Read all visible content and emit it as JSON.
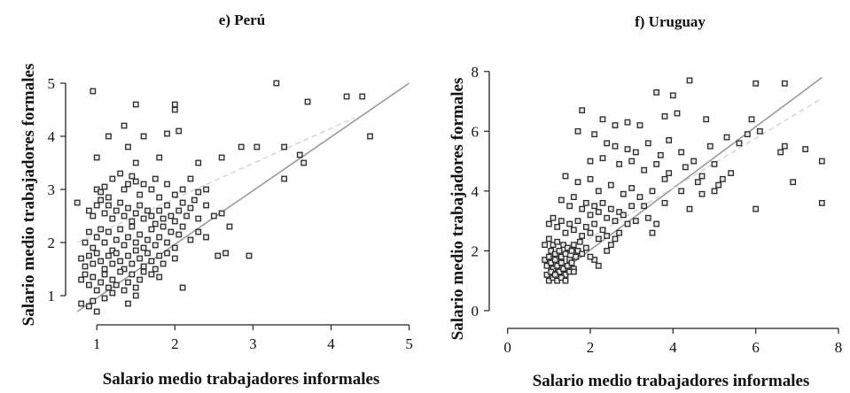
{
  "chart_data": [
    {
      "type": "scatter",
      "title": "e) Perú",
      "xlabel": "Salario medio trabajadores informales",
      "ylabel": "Salario medio trabajadores formales",
      "xlim": [
        0.6,
        5.05
      ],
      "ylim": [
        0.6,
        5.3
      ],
      "xticks": [
        1,
        2,
        3,
        4,
        5
      ],
      "yticks": [
        1,
        2,
        3,
        4,
        5
      ],
      "lines": [
        {
          "style": "solid",
          "color": "#9a9a9a",
          "x": [
            0.75,
            5.0
          ],
          "y": [
            0.7,
            5.0
          ]
        },
        {
          "style": "dashed",
          "color": "#d2d2d2",
          "x": [
            0.75,
            4.3
          ],
          "y": [
            2.0,
            4.35
          ]
        }
      ],
      "points": [
        [
          0.95,
          4.85
        ],
        [
          1.5,
          4.6
        ],
        [
          2.0,
          4.6
        ],
        [
          2.0,
          4.5
        ],
        [
          3.3,
          5.0
        ],
        [
          4.2,
          4.75
        ],
        [
          4.4,
          4.75
        ],
        [
          3.7,
          4.65
        ],
        [
          4.5,
          4.0
        ],
        [
          1.15,
          4.0
        ],
        [
          1.35,
          4.2
        ],
        [
          1.6,
          4.0
        ],
        [
          1.9,
          4.05
        ],
        [
          2.05,
          4.1
        ],
        [
          2.85,
          3.8
        ],
        [
          3.05,
          3.8
        ],
        [
          3.4,
          3.8
        ],
        [
          3.6,
          3.65
        ],
        [
          3.65,
          3.5
        ],
        [
          3.4,
          3.2
        ],
        [
          1.0,
          3.6
        ],
        [
          1.4,
          3.8
        ],
        [
          1.5,
          3.5
        ],
        [
          1.8,
          3.6
        ],
        [
          2.3,
          3.5
        ],
        [
          2.6,
          3.6
        ],
        [
          1.0,
          3.0
        ],
        [
          1.05,
          2.95
        ],
        [
          1.1,
          3.05
        ],
        [
          1.15,
          2.85
        ],
        [
          1.2,
          3.2
        ],
        [
          1.3,
          3.3
        ],
        [
          1.35,
          3.0
        ],
        [
          1.4,
          3.1
        ],
        [
          1.45,
          3.25
        ],
        [
          1.5,
          3.15
        ],
        [
          1.55,
          2.9
        ],
        [
          1.6,
          3.1
        ],
        [
          1.7,
          3.0
        ],
        [
          1.75,
          3.2
        ],
        [
          1.8,
          2.85
        ],
        [
          1.9,
          3.1
        ],
        [
          2.0,
          2.9
        ],
        [
          2.1,
          3.0
        ],
        [
          2.2,
          3.2
        ],
        [
          2.3,
          2.95
        ],
        [
          2.4,
          3.0
        ],
        [
          0.75,
          2.75
        ],
        [
          0.9,
          2.6
        ],
        [
          0.95,
          2.5
        ],
        [
          1.0,
          2.7
        ],
        [
          1.05,
          2.8
        ],
        [
          1.1,
          2.55
        ],
        [
          1.15,
          2.7
        ],
        [
          1.2,
          2.45
        ],
        [
          1.25,
          2.6
        ],
        [
          1.3,
          2.75
        ],
        [
          1.35,
          2.5
        ],
        [
          1.4,
          2.65
        ],
        [
          1.45,
          2.4
        ],
        [
          1.5,
          2.55
        ],
        [
          1.55,
          2.7
        ],
        [
          1.6,
          2.45
        ],
        [
          1.65,
          2.6
        ],
        [
          1.7,
          2.5
        ],
        [
          1.75,
          2.35
        ],
        [
          1.8,
          2.6
        ],
        [
          1.85,
          2.45
        ],
        [
          1.9,
          2.7
        ],
        [
          1.95,
          2.5
        ],
        [
          2.0,
          2.4
        ],
        [
          2.05,
          2.6
        ],
        [
          2.1,
          2.75
        ],
        [
          2.15,
          2.5
        ],
        [
          2.2,
          2.65
        ],
        [
          2.25,
          2.8
        ],
        [
          2.3,
          2.45
        ],
        [
          2.4,
          2.7
        ],
        [
          2.5,
          2.5
        ],
        [
          2.6,
          2.55
        ],
        [
          2.7,
          2.3
        ],
        [
          0.85,
          2.0
        ],
        [
          0.9,
          2.2
        ],
        [
          0.95,
          1.9
        ],
        [
          1.0,
          2.1
        ],
        [
          1.05,
          2.25
        ],
        [
          1.1,
          2.0
        ],
        [
          1.15,
          2.2
        ],
        [
          1.2,
          1.85
        ],
        [
          1.25,
          2.05
        ],
        [
          1.3,
          2.25
        ],
        [
          1.35,
          1.95
        ],
        [
          1.4,
          2.1
        ],
        [
          1.45,
          2.3
        ],
        [
          1.5,
          2.0
        ],
        [
          1.55,
          2.15
        ],
        [
          1.6,
          1.9
        ],
        [
          1.65,
          2.05
        ],
        [
          1.7,
          2.25
        ],
        [
          1.75,
          1.95
        ],
        [
          1.8,
          2.1
        ],
        [
          1.85,
          2.3
        ],
        [
          1.9,
          2.0
        ],
        [
          1.95,
          2.2
        ],
        [
          2.0,
          1.9
        ],
        [
          2.05,
          2.15
        ],
        [
          2.1,
          2.3
        ],
        [
          2.2,
          2.05
        ],
        [
          2.3,
          2.2
        ],
        [
          2.4,
          2.1
        ],
        [
          0.8,
          1.7
        ],
        [
          0.85,
          1.55
        ],
        [
          0.9,
          1.75
        ],
        [
          0.95,
          1.6
        ],
        [
          1.0,
          1.8
        ],
        [
          1.05,
          1.65
        ],
        [
          1.1,
          1.5
        ],
        [
          1.15,
          1.75
        ],
        [
          1.2,
          1.6
        ],
        [
          1.25,
          1.8
        ],
        [
          1.3,
          1.65
        ],
        [
          1.35,
          1.5
        ],
        [
          1.4,
          1.75
        ],
        [
          1.45,
          1.6
        ],
        [
          1.5,
          1.85
        ],
        [
          1.55,
          1.7
        ],
        [
          1.6,
          1.55
        ],
        [
          1.65,
          1.8
        ],
        [
          1.7,
          1.65
        ],
        [
          1.75,
          1.5
        ],
        [
          1.8,
          1.75
        ],
        [
          1.85,
          1.6
        ],
        [
          1.9,
          1.8
        ],
        [
          2.0,
          1.7
        ],
        [
          2.55,
          1.75
        ],
        [
          2.65,
          1.8
        ],
        [
          2.95,
          1.75
        ],
        [
          0.8,
          1.3
        ],
        [
          0.85,
          1.4
        ],
        [
          0.9,
          1.2
        ],
        [
          0.95,
          1.35
        ],
        [
          1.0,
          1.1
        ],
        [
          1.05,
          1.25
        ],
        [
          1.1,
          1.4
        ],
        [
          1.15,
          1.15
        ],
        [
          1.2,
          1.3
        ],
        [
          1.25,
          1.2
        ],
        [
          1.3,
          1.45
        ],
        [
          1.35,
          1.1
        ],
        [
          1.4,
          1.25
        ],
        [
          1.45,
          1.4
        ],
        [
          1.5,
          1.15
        ],
        [
          1.55,
          1.3
        ],
        [
          1.6,
          1.45
        ],
        [
          1.7,
          1.4
        ],
        [
          1.8,
          1.35
        ],
        [
          2.1,
          1.15
        ],
        [
          0.8,
          0.85
        ],
        [
          0.9,
          0.8
        ],
        [
          0.95,
          0.9
        ],
        [
          1.0,
          0.7
        ],
        [
          1.1,
          0.95
        ],
        [
          1.2,
          1.05
        ],
        [
          1.4,
          0.85
        ],
        [
          1.5,
          1.0
        ]
      ]
    },
    {
      "type": "scatter",
      "title": "f) Uruguay",
      "xlabel": "Salario medio trabajadores informales",
      "ylabel": "Salario medio trabajadores formales",
      "xlim": [
        -0.1,
        8.0
      ],
      "ylim": [
        -0.15,
        8.2
      ],
      "xticks": [
        0,
        2,
        4,
        6,
        8
      ],
      "yticks": [
        0,
        2,
        4,
        6,
        8
      ],
      "lines": [
        {
          "style": "solid",
          "color": "#9a9a9a",
          "x": [
            1.0,
            7.6
          ],
          "y": [
            1.0,
            7.8
          ]
        },
        {
          "style": "dashed",
          "color": "#d2d2d2",
          "x": [
            1.0,
            7.6
          ],
          "y": [
            1.6,
            7.1
          ]
        }
      ],
      "points": [
        [
          4.4,
          7.7
        ],
        [
          6.0,
          7.6
        ],
        [
          6.7,
          7.6
        ],
        [
          3.6,
          7.3
        ],
        [
          4.0,
          7.2
        ],
        [
          1.8,
          6.7
        ],
        [
          2.3,
          6.4
        ],
        [
          2.6,
          6.2
        ],
        [
          2.9,
          6.3
        ],
        [
          3.2,
          6.2
        ],
        [
          3.8,
          6.5
        ],
        [
          4.1,
          6.6
        ],
        [
          4.8,
          6.4
        ],
        [
          5.9,
          6.4
        ],
        [
          6.1,
          6.0
        ],
        [
          6.7,
          5.5
        ],
        [
          7.2,
          5.4
        ],
        [
          7.6,
          5.0
        ],
        [
          6.6,
          5.3
        ],
        [
          6.9,
          4.3
        ],
        [
          7.6,
          3.6
        ],
        [
          6.0,
          3.4
        ],
        [
          1.7,
          6.0
        ],
        [
          2.1,
          5.9
        ],
        [
          2.4,
          5.6
        ],
        [
          2.6,
          5.5
        ],
        [
          2.9,
          5.4
        ],
        [
          3.1,
          5.3
        ],
        [
          3.4,
          5.6
        ],
        [
          3.7,
          5.2
        ],
        [
          3.9,
          5.7
        ],
        [
          4.2,
          5.3
        ],
        [
          4.5,
          5.0
        ],
        [
          4.9,
          5.5
        ],
        [
          5.3,
          5.8
        ],
        [
          5.6,
          5.6
        ],
        [
          5.8,
          5.9
        ],
        [
          2.0,
          5.0
        ],
        [
          2.3,
          5.1
        ],
        [
          2.7,
          4.9
        ],
        [
          3.0,
          5.0
        ],
        [
          3.3,
          4.7
        ],
        [
          3.6,
          4.9
        ],
        [
          3.9,
          4.6
        ],
        [
          4.3,
          4.8
        ],
        [
          4.7,
          4.5
        ],
        [
          5.0,
          4.9
        ],
        [
          5.2,
          4.4
        ],
        [
          5.4,
          4.6
        ],
        [
          5.1,
          4.2
        ],
        [
          4.6,
          4.3
        ],
        [
          4.2,
          4.0
        ],
        [
          3.8,
          4.4
        ],
        [
          5.0,
          4.0
        ],
        [
          4.7,
          3.9
        ],
        [
          3.8,
          3.6
        ],
        [
          4.4,
          3.4
        ],
        [
          1.4,
          4.5
        ],
        [
          1.7,
          4.3
        ],
        [
          2.0,
          4.4
        ],
        [
          2.2,
          4.0
        ],
        [
          2.5,
          4.2
        ],
        [
          2.8,
          3.9
        ],
        [
          3.0,
          4.1
        ],
        [
          3.2,
          3.8
        ],
        [
          3.5,
          4.0
        ],
        [
          3.3,
          3.5
        ],
        [
          3.0,
          3.5
        ],
        [
          2.7,
          3.3
        ],
        [
          1.3,
          3.7
        ],
        [
          1.5,
          3.5
        ],
        [
          1.6,
          3.8
        ],
        [
          1.8,
          3.4
        ],
        [
          1.9,
          3.6
        ],
        [
          2.0,
          3.2
        ],
        [
          2.1,
          3.5
        ],
        [
          2.2,
          3.3
        ],
        [
          2.3,
          3.6
        ],
        [
          2.4,
          3.1
        ],
        [
          2.5,
          3.4
        ],
        [
          2.6,
          3.0
        ],
        [
          2.8,
          3.2
        ],
        [
          2.9,
          2.9
        ],
        [
          3.1,
          3.0
        ],
        [
          3.4,
          3.1
        ],
        [
          3.6,
          2.9
        ],
        [
          3.5,
          2.6
        ],
        [
          2.6,
          2.4
        ],
        [
          1.0,
          2.9
        ],
        [
          1.1,
          3.1
        ],
        [
          1.2,
          2.8
        ],
        [
          1.3,
          3.0
        ],
        [
          1.4,
          2.6
        ],
        [
          1.5,
          2.9
        ],
        [
          1.6,
          2.7
        ],
        [
          1.7,
          3.0
        ],
        [
          1.8,
          2.5
        ],
        [
          1.9,
          2.8
        ],
        [
          2.0,
          2.6
        ],
        [
          2.1,
          2.9
        ],
        [
          2.2,
          2.4
        ],
        [
          2.3,
          2.7
        ],
        [
          2.4,
          2.5
        ],
        [
          2.5,
          2.2
        ],
        [
          2.7,
          2.6
        ],
        [
          2.4,
          2.0
        ],
        [
          2.1,
          1.7
        ],
        [
          2.2,
          1.5
        ],
        [
          0.9,
          2.2
        ],
        [
          1.0,
          2.4
        ],
        [
          1.05,
          2.0
        ],
        [
          1.1,
          2.2
        ],
        [
          1.15,
          1.9
        ],
        [
          1.2,
          2.3
        ],
        [
          1.25,
          2.0
        ],
        [
          1.3,
          1.8
        ],
        [
          1.35,
          2.2
        ],
        [
          1.4,
          1.9
        ],
        [
          1.45,
          2.1
        ],
        [
          1.5,
          1.7
        ],
        [
          1.55,
          2.0
        ],
        [
          1.6,
          2.2
        ],
        [
          1.65,
          1.8
        ],
        [
          1.7,
          2.0
        ],
        [
          1.75,
          2.3
        ],
        [
          1.8,
          1.9
        ],
        [
          1.9,
          2.1
        ],
        [
          2.0,
          1.8
        ],
        [
          0.9,
          1.7
        ],
        [
          0.95,
          1.5
        ],
        [
          1.0,
          1.8
        ],
        [
          1.05,
          1.6
        ],
        [
          1.1,
          1.4
        ],
        [
          1.15,
          1.7
        ],
        [
          1.2,
          1.5
        ],
        [
          1.25,
          1.3
        ],
        [
          1.3,
          1.6
        ],
        [
          1.35,
          1.4
        ],
        [
          1.4,
          1.2
        ],
        [
          1.45,
          1.5
        ],
        [
          1.5,
          1.3
        ],
        [
          1.55,
          1.6
        ],
        [
          1.6,
          1.4
        ],
        [
          0.95,
          1.2
        ],
        [
          1.0,
          1.0
        ],
        [
          1.05,
          1.3
        ],
        [
          1.1,
          1.1
        ],
        [
          1.15,
          1.2
        ],
        [
          1.2,
          1.0
        ],
        [
          1.3,
          1.1
        ],
        [
          1.4,
          1.0
        ],
        [
          1.6,
          1.3
        ]
      ]
    }
  ]
}
